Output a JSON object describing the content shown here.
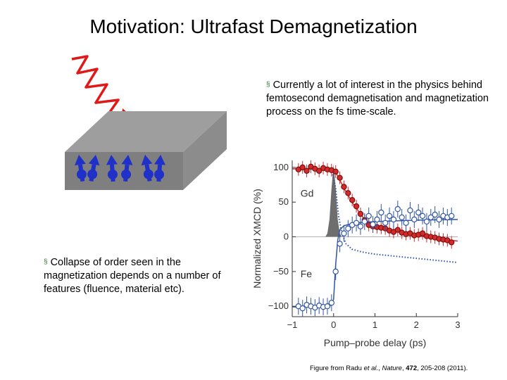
{
  "slide": {
    "title": "Motivation: Ultrafast Demagnetization",
    "bullet1": "Currently a lot of interest in the physics behind femtosecond demagnetisation and magnetization process on the fs time-scale.",
    "bullet2": "Collapse of order seen in the magnetization depends on a number of features (fluence, material etc).",
    "bullet_marker": "§",
    "caption": {
      "prefix": "Figure from Radu ",
      "etal": "et al.",
      "sep1": ", ",
      "journal": "Nature",
      "sep2": ", ",
      "volume": "472",
      "rest": ", 205-208 (2011)."
    }
  },
  "colors": {
    "gd": "#d42a2a",
    "fe": "#2f55a5",
    "laser": "#e01818",
    "slab_front": "#7f7f7f",
    "slab_top": "#9e9e9e",
    "spin": "#1f31c8"
  },
  "chart_data": {
    "type": "scatter",
    "xlabel": "Pump–probe delay (ps)",
    "ylabel": "Normalized XMCD (%)",
    "xlim": [
      -1,
      3
    ],
    "ylim": [
      -115,
      110
    ],
    "xticks": [
      -1,
      0,
      1,
      2,
      3
    ],
    "xtick_labels": [
      "−1",
      "0",
      "1",
      "2",
      "3"
    ],
    "yticks": [
      100,
      50,
      0,
      -50,
      -100
    ],
    "ytick_labels": [
      "100",
      "50",
      "0",
      "−50",
      "−100"
    ],
    "series": [
      {
        "name": "Gd",
        "x": [
          -0.85,
          -0.75,
          -0.65,
          -0.55,
          -0.45,
          -0.35,
          -0.25,
          -0.15,
          -0.05,
          0.05,
          0.15,
          0.25,
          0.35,
          0.45,
          0.55,
          0.65,
          0.75,
          0.85,
          0.95,
          1.05,
          1.15,
          1.25,
          1.35,
          1.45,
          1.55,
          1.65,
          1.75,
          1.85,
          1.95,
          2.05,
          2.15,
          2.25,
          2.35,
          2.45,
          2.55,
          2.65,
          2.75,
          2.85
        ],
        "y": [
          97,
          100,
          95,
          101,
          98,
          95,
          99,
          97,
          96,
          94,
          85,
          72,
          63,
          53,
          44,
          33,
          24,
          17,
          15,
          14,
          13,
          12,
          9,
          7,
          10,
          6,
          4,
          5,
          2,
          3,
          5,
          1,
          0,
          -1,
          -3,
          -4,
          -5,
          -8
        ]
      },
      {
        "name": "Fe",
        "x": [
          -0.85,
          -0.75,
          -0.65,
          -0.55,
          -0.45,
          -0.35,
          -0.25,
          -0.15,
          -0.05,
          0.05,
          0.15,
          0.25,
          0.35,
          0.45,
          0.55,
          0.65,
          0.75,
          0.85,
          0.95,
          1.05,
          1.15,
          1.25,
          1.35,
          1.45,
          1.55,
          1.65,
          1.75,
          1.85,
          1.95,
          2.05,
          2.15,
          2.25,
          2.35,
          2.45,
          2.55,
          2.65,
          2.75,
          2.85
        ],
        "y": [
          -100,
          -103,
          -98,
          -100,
          -102,
          -99,
          -101,
          -100,
          -95,
          -50,
          -10,
          5,
          12,
          17,
          20,
          15,
          22,
          30,
          18,
          25,
          35,
          20,
          30,
          25,
          40,
          28,
          20,
          38,
          25,
          35,
          30,
          22,
          28,
          32,
          25,
          30,
          28,
          30
        ]
      }
    ],
    "fe_fit": {
      "name": "Fe fit",
      "x": [
        -1,
        -0.1,
        0,
        0.05,
        0.1,
        0.15,
        0.25,
        0.5,
        1,
        2,
        3
      ],
      "y": [
        -101,
        -101,
        -90,
        -40,
        -5,
        10,
        16,
        20,
        22,
        24,
        25
      ]
    },
    "gd_fit": {
      "name": "Gd fit",
      "x": [
        -1,
        -0.1,
        0,
        0.1,
        0.25,
        0.5,
        0.75,
        1,
        1.5,
        2,
        2.5,
        3
      ],
      "y": [
        98,
        98,
        96,
        88,
        70,
        45,
        25,
        15,
        8,
        2,
        -3,
        -6
      ]
    },
    "dotted_curve": {
      "name": "Gd reference",
      "x": [
        -1,
        -0.05,
        0.05,
        0.12,
        0.2,
        0.3,
        0.45,
        0.7,
        1,
        1.5,
        2,
        2.5,
        3
      ],
      "y": [
        98,
        98,
        70,
        30,
        5,
        -10,
        -18,
        -22,
        -25,
        -28,
        -31,
        -34,
        -37
      ]
    },
    "pump_pulse": {
      "name": "Pump pulse",
      "x": [
        -0.2,
        -0.15,
        -0.1,
        -0.05,
        0,
        0.05,
        0.1,
        0.15,
        0.2
      ],
      "y": [
        0,
        5,
        25,
        70,
        105,
        70,
        25,
        5,
        0
      ]
    },
    "annotations": [
      "Gd",
      "Fe"
    ]
  }
}
